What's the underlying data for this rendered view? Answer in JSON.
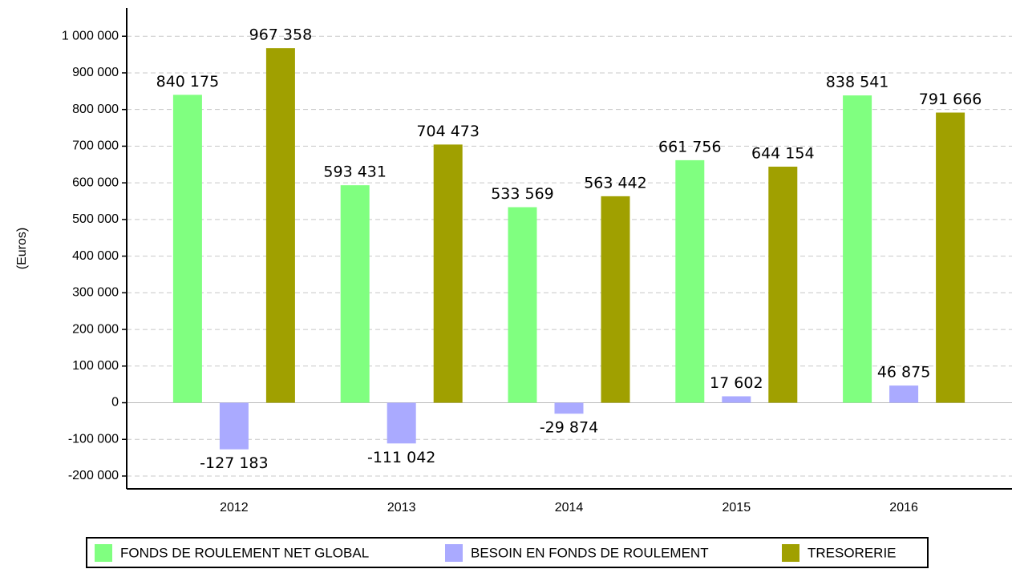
{
  "chart_data": {
    "type": "bar",
    "y_label": "(Euros)",
    "categories": [
      "2012",
      "2013",
      "2014",
      "2015",
      "2016"
    ],
    "series": [
      {
        "name": "FONDS DE ROULEMENT NET GLOBAL",
        "color": "#80ff80",
        "values": [
          840175,
          593431,
          533569,
          661756,
          838541
        ],
        "value_labels": [
          "840 175",
          "593 431",
          "533 569",
          "661 756",
          "838 541"
        ]
      },
      {
        "name": "BESOIN EN FONDS DE ROULEMENT",
        "color": "#aaaaff",
        "values": [
          -127183,
          -111042,
          -29874,
          17602,
          46875
        ],
        "value_labels": [
          "-127 183",
          "-111 042",
          "-29 874",
          "17 602",
          "46 875"
        ]
      },
      {
        "name": "TRESORERIE",
        "color": "#a0a000",
        "values": [
          967358,
          704473,
          563442,
          644154,
          791666
        ],
        "value_labels": [
          "967 358",
          "704 473",
          "563 442",
          "644 154",
          "791 666"
        ]
      }
    ],
    "ylim": [
      -235000,
      1077000
    ],
    "yticks": [
      {
        "value": -200000,
        "label": "-200 000"
      },
      {
        "value": -100000,
        "label": "-100 000"
      },
      0,
      {
        "value": 100000,
        "label": "100 000"
      },
      {
        "value": 200000,
        "label": "200 000"
      },
      {
        "value": 300000,
        "label": "300 000"
      },
      {
        "value": 400000,
        "label": "400 000"
      },
      {
        "value": 500000,
        "label": "500 000"
      },
      {
        "value": 600000,
        "label": "600 000"
      },
      {
        "value": 700000,
        "label": "700 000"
      },
      {
        "value": 800000,
        "label": "800 000"
      },
      {
        "value": 900000,
        "label": "900 000"
      },
      {
        "value": 1000000,
        "label": "1 000 000"
      }
    ],
    "grid": true,
    "legend": "bottom"
  }
}
